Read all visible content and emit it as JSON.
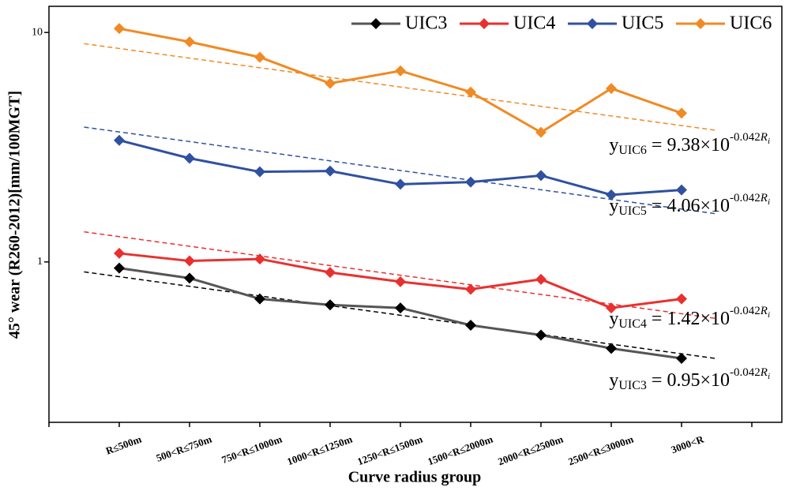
{
  "chart_data": {
    "type": "line",
    "xlabel": "Curve radius group",
    "ylabel": "45° wear (R260-2012)[mm/100MGT]",
    "categories": [
      "R≤500m",
      "500<R≤750m",
      "750<R≤1000m",
      "1000<R≤1250m",
      "1250<R≤1500m",
      "1500<R≤2000m",
      "2000<R≤2500m",
      "2500<R≤3000m",
      "3000<R"
    ],
    "log_y": true,
    "ylim": [
      0.2,
      13
    ],
    "yticks": [
      1,
      10
    ],
    "legend": "top-right",
    "equation_parts": {
      "y": "y",
      "eq": " = ",
      "times": "×10",
      "var": "R",
      "var_sub": "i"
    },
    "series": [
      {
        "name": "UIC3",
        "color": "#555555",
        "marker_color": "#000000",
        "values": [
          0.94,
          0.85,
          0.69,
          0.65,
          0.63,
          0.53,
          0.48,
          0.42,
          0.38
        ],
        "trend": {
          "coefficient": 0.95,
          "exponent": -0.042,
          "color": "#000000"
        }
      },
      {
        "name": "UIC4",
        "color": "#e8312f",
        "marker_color": "#e8312f",
        "values": [
          1.09,
          1.01,
          1.03,
          0.9,
          0.82,
          0.76,
          0.84,
          0.63,
          0.69
        ],
        "trend": {
          "coefficient": 1.42,
          "exponent": -0.042,
          "color": "#e8312f"
        }
      },
      {
        "name": "UIC5",
        "color": "#3050a0",
        "marker_color": "#3050a0",
        "values": [
          3.39,
          2.83,
          2.47,
          2.49,
          2.18,
          2.23,
          2.38,
          1.96,
          2.06
        ],
        "trend": {
          "coefficient": 4.06,
          "exponent": -0.042,
          "color": "#3050a0"
        }
      },
      {
        "name": "UIC6",
        "color": "#f08a24",
        "marker_color": "#f08a24",
        "values": [
          10.4,
          9.1,
          7.8,
          6.0,
          6.8,
          5.5,
          3.67,
          5.7,
          4.45
        ],
        "trend": {
          "coefficient": 9.38,
          "exponent": -0.042,
          "color": "#f08a24"
        }
      }
    ]
  }
}
